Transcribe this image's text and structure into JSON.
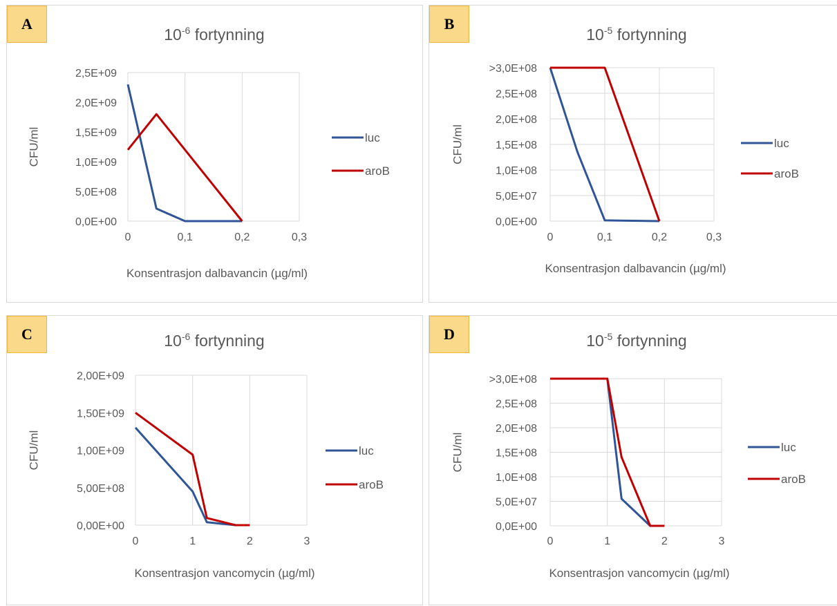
{
  "chart_data": [
    {
      "panel_label": "A",
      "type": "line",
      "title": {
        "base": "10",
        "sup": "-6",
        "rest": " fortynning"
      },
      "xlabel": "Konsentrasjon dalbavancin (µg/ml)",
      "ylabel": "CFU/ml",
      "xlim": [
        0,
        0.3
      ],
      "xticks": [
        0,
        0.1,
        0.2,
        0.3
      ],
      "xtick_labels": [
        "0",
        "0,1",
        "0,2",
        "0,3"
      ],
      "ylim": [
        0,
        2500000000
      ],
      "yticks": [
        0,
        500000000,
        1000000000,
        1500000000,
        2000000000,
        2500000000
      ],
      "ytick_labels": [
        "0,0E+00",
        "5,0E+08",
        "1,0E+09",
        "1,5E+09",
        "2,0E+09",
        "2,5E+09"
      ],
      "grid": "vertical",
      "legend_position": "right",
      "series": [
        {
          "name": "luc",
          "color": "#2f5597",
          "x": [
            0,
            0.05,
            0.1,
            0.2
          ],
          "y": [
            2300000000,
            210000000,
            0,
            0
          ]
        },
        {
          "name": "aroB",
          "color": "#c00000",
          "x": [
            0,
            0.05,
            0.2
          ],
          "y": [
            1200000000,
            1800000000,
            0
          ]
        }
      ]
    },
    {
      "panel_label": "B",
      "type": "line",
      "title": {
        "base": "10",
        "sup": "-5",
        "rest": " fortynning"
      },
      "xlabel": "Konsentrasjon dalbavancin (µg/ml)",
      "ylabel": "CFU/ml",
      "xlim": [
        0,
        0.3
      ],
      "xticks": [
        0,
        0.1,
        0.2,
        0.3
      ],
      "xtick_labels": [
        "0",
        "0,1",
        "0,2",
        "0,3"
      ],
      "ylim": [
        0,
        300000000
      ],
      "yticks": [
        0,
        50000000,
        100000000,
        150000000,
        200000000,
        250000000,
        300000000
      ],
      "ytick_labels": [
        "0,0E+00",
        "5,0E+07",
        "1,0E+08",
        "1,5E+08",
        "2,0E+08",
        "2,5E+08",
        ">3,0E+08"
      ],
      "grid": "both",
      "legend_position": "right",
      "series": [
        {
          "name": "luc",
          "color": "#2f5597",
          "x": [
            0,
            0.05,
            0.1,
            0.2
          ],
          "y": [
            300000000,
            135000000,
            1500000,
            0
          ]
        },
        {
          "name": "aroB",
          "color": "#c00000",
          "x": [
            0,
            0.1,
            0.2
          ],
          "y": [
            300000000,
            300000000,
            0
          ]
        }
      ]
    },
    {
      "panel_label": "C",
      "type": "line",
      "title": {
        "base": "10",
        "sup": "-6",
        "rest": " fortynning"
      },
      "xlabel": "Konsentrasjon vancomycin (µg/ml)",
      "ylabel": "CFU/ml",
      "xlim": [
        0,
        3
      ],
      "xticks": [
        0,
        1,
        2,
        3
      ],
      "xtick_labels": [
        "0",
        "1",
        "2",
        "3"
      ],
      "ylim": [
        0,
        2000000000
      ],
      "yticks": [
        0,
        500000000,
        1000000000,
        1500000000,
        2000000000
      ],
      "ytick_labels": [
        "0,00E+00",
        "5,00E+08",
        "1,00E+09",
        "1,50E+09",
        "2,00E+09"
      ],
      "grid": "vertical",
      "legend_position": "right",
      "series": [
        {
          "name": "luc",
          "color": "#2f5597",
          "x": [
            0,
            1,
            1.25,
            1.75,
            2
          ],
          "y": [
            1300000000,
            450000000,
            40000000,
            0,
            0
          ]
        },
        {
          "name": "aroB",
          "color": "#c00000",
          "x": [
            0,
            1,
            1.25,
            1.75,
            2
          ],
          "y": [
            1500000000,
            940000000,
            95000000,
            0,
            0
          ]
        }
      ]
    },
    {
      "panel_label": "D",
      "type": "line",
      "title": {
        "base": "10",
        "sup": "-5",
        "rest": " fortynning"
      },
      "xlabel": "Konsentrasjon vancomycin (µg/ml)",
      "ylabel": "CFU/ml",
      "xlim": [
        0,
        3
      ],
      "xticks": [
        0,
        1,
        2,
        3
      ],
      "xtick_labels": [
        "0",
        "1",
        "2",
        "3"
      ],
      "ylim": [
        0,
        300000000
      ],
      "yticks": [
        0,
        50000000,
        100000000,
        150000000,
        200000000,
        250000000,
        300000000
      ],
      "ytick_labels": [
        "0,0E+00",
        "5,0E+07",
        "1,0E+08",
        "1,5E+08",
        "2,0E+08",
        "2,5E+08",
        ">3,0E+08"
      ],
      "grid": "both",
      "legend_position": "right",
      "series": [
        {
          "name": "luc",
          "color": "#2f5597",
          "x": [
            0,
            1,
            1.25,
            1.75,
            2
          ],
          "y": [
            300000000,
            300000000,
            55000000,
            0,
            0
          ]
        },
        {
          "name": "aroB",
          "color": "#c00000",
          "x": [
            0,
            1,
            1.25,
            1.75,
            2
          ],
          "y": [
            300000000,
            300000000,
            140000000,
            0,
            0
          ]
        }
      ]
    }
  ]
}
